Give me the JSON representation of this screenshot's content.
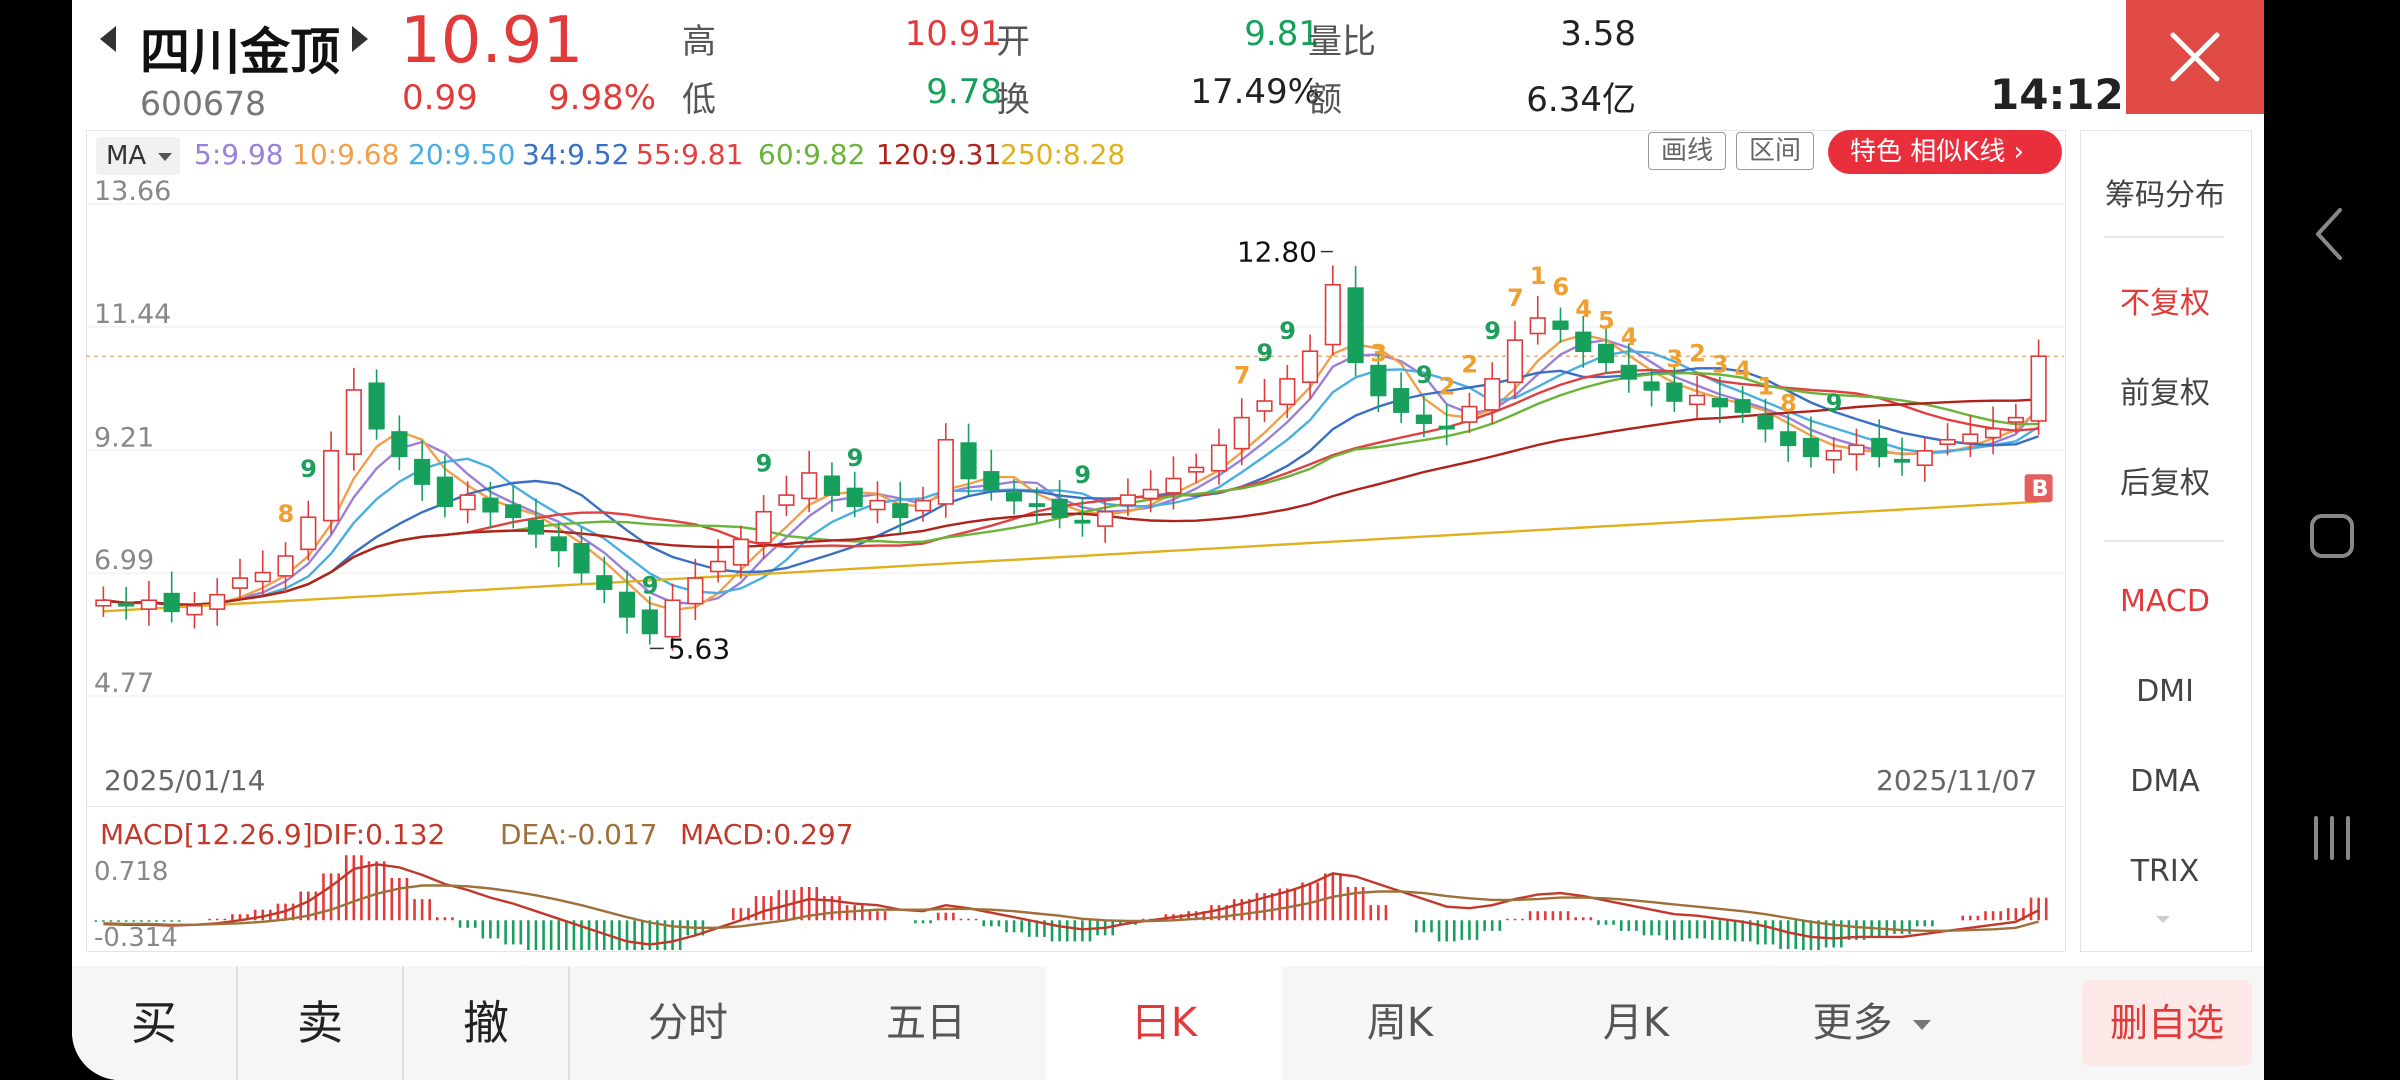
{
  "stock": {
    "name": "四川金顶",
    "code": "600678",
    "price": "10.91",
    "change": "0.99",
    "change_pct": "9.98%"
  },
  "quote": {
    "high_label": "高",
    "high": "10.91",
    "low_label": "低",
    "low": "9.78",
    "open_label": "开",
    "open": "9.81",
    "turnover_label": "换",
    "turnover": "17.49%",
    "volratio_label": "量比",
    "volratio": "3.58",
    "amount_label": "额",
    "amount": "6.34亿"
  },
  "time": "14:12",
  "ma": {
    "selector": "MA",
    "items": [
      {
        "text": "5:9.98",
        "color": "#9b7fd8"
      },
      {
        "text": "10:9.68",
        "color": "#f0a04b"
      },
      {
        "text": "20:9.50",
        "color": "#4aaee0"
      },
      {
        "text": "34:9.52",
        "color": "#3b6fc4"
      },
      {
        "text": "55:9.81",
        "color": "#e04040"
      },
      {
        "text": "60:9.82",
        "color": "#6ab43a"
      },
      {
        "text": "120:9.31",
        "color": "#b0221c"
      },
      {
        "text": "250:8.28",
        "color": "#e0b020"
      }
    ]
  },
  "toolbar": {
    "draw": "画线",
    "range": "区间",
    "feature": "特色  相似K线 ›"
  },
  "chart_data": {
    "type": "candlestick",
    "y_ticks": [
      "13.66",
      "11.44",
      "9.21",
      "6.99",
      "4.77"
    ],
    "ylim": [
      4.77,
      13.66
    ],
    "x_labels": [
      "2025/01/14",
      "2025/11/07"
    ],
    "high_marker": "12.80",
    "low_marker": "5.63",
    "last_close": 10.91,
    "trade_marker": "B",
    "sequence_counts": [
      "9",
      "8",
      "9",
      "9",
      "9",
      "9",
      "9",
      "9",
      "9",
      "9",
      "7",
      "7",
      "2",
      "1",
      "4",
      "3",
      "2",
      "6",
      "5",
      "4",
      "3",
      "4",
      "3",
      "2",
      "1",
      "8",
      "9"
    ],
    "closes": [
      6.5,
      6.4,
      6.5,
      6.3,
      6.4,
      6.6,
      6.9,
      7.0,
      7.3,
      8.0,
      9.2,
      10.3,
      9.6,
      9.1,
      8.6,
      8.2,
      8.4,
      8.1,
      8.0,
      7.7,
      7.4,
      7.0,
      6.7,
      6.2,
      5.9,
      6.5,
      6.9,
      7.2,
      7.6,
      8.1,
      8.4,
      8.8,
      8.4,
      8.2,
      8.3,
      8.0,
      8.3,
      9.4,
      8.7,
      8.5,
      8.3,
      8.2,
      8.0,
      7.9,
      8.1,
      8.4,
      8.5,
      8.7,
      8.9,
      9.3,
      9.8,
      10.1,
      10.5,
      11.0,
      12.2,
      10.8,
      10.2,
      9.9,
      9.7,
      9.6,
      10.0,
      10.5,
      11.2,
      11.6,
      11.4,
      11.0,
      10.8,
      10.5,
      10.3,
      10.1,
      10.2,
      10.0,
      9.9,
      9.6,
      9.3,
      9.1,
      9.2,
      9.3,
      9.1,
      9.0,
      9.2,
      9.4,
      9.5,
      9.6,
      9.8,
      10.91
    ],
    "ma_values": {
      "ma5": [
        6.5,
        6.45,
        6.45,
        6.42,
        6.42,
        6.44,
        6.54,
        6.64,
        6.84,
        7.16,
        7.68,
        8.36,
        8.88,
        9.24,
        9.36,
        9.16,
        8.78,
        8.46,
        8.26,
        8.08,
        7.92,
        7.64,
        7.36,
        7.0,
        6.64,
        6.46,
        6.44,
        6.54,
        6.82,
        7.26,
        7.64,
        8.02,
        8.3,
        8.36,
        8.42,
        8.34,
        8.24,
        8.44,
        8.54,
        8.58,
        8.64,
        8.62,
        8.34,
        8.18,
        8.1,
        8.12,
        8.18,
        8.32,
        8.52,
        8.76,
        9.04,
        9.36,
        9.72,
        10.14,
        10.72,
        10.92,
        10.94,
        10.82,
        10.56,
        10.04,
        9.88,
        9.94,
        10.2,
        10.58,
        10.94,
        11.14,
        11.2,
        11.06,
        10.8,
        10.54,
        10.38,
        10.22,
        10.1,
        9.96,
        9.8,
        9.58,
        9.42,
        9.3,
        9.2,
        9.14,
        9.16,
        9.2,
        9.24,
        9.34,
        9.5,
        9.98
      ]
    },
    "macd": {
      "title": "MACD[12.26.9]",
      "dif": "DIF:0.132",
      "dea": "DEA:-0.017",
      "macd": "MACD:0.297",
      "y_ticks": [
        "0.718",
        "-0.314"
      ],
      "dif_values": [
        -0.05,
        -0.06,
        -0.06,
        -0.07,
        -0.06,
        -0.04,
        0.0,
        0.05,
        0.12,
        0.25,
        0.45,
        0.68,
        0.74,
        0.7,
        0.6,
        0.48,
        0.4,
        0.3,
        0.22,
        0.12,
        0.02,
        -0.08,
        -0.18,
        -0.28,
        -0.32,
        -0.28,
        -0.2,
        -0.1,
        0.0,
        0.12,
        0.2,
        0.28,
        0.26,
        0.22,
        0.2,
        0.14,
        0.12,
        0.2,
        0.16,
        0.1,
        0.04,
        -0.02,
        -0.08,
        -0.12,
        -0.1,
        -0.04,
        0.0,
        0.04,
        0.08,
        0.14,
        0.22,
        0.3,
        0.38,
        0.48,
        0.62,
        0.58,
        0.48,
        0.38,
        0.28,
        0.18,
        0.16,
        0.2,
        0.28,
        0.34,
        0.36,
        0.32,
        0.26,
        0.2,
        0.14,
        0.08,
        0.06,
        0.02,
        -0.02,
        -0.08,
        -0.16,
        -0.22,
        -0.24,
        -0.22,
        -0.22,
        -0.22,
        -0.18,
        -0.14,
        -0.1,
        -0.06,
        -0.02,
        0.132
      ],
      "dea_values": [
        -0.04,
        -0.05,
        -0.05,
        -0.06,
        -0.06,
        -0.05,
        -0.04,
        -0.02,
        0.01,
        0.06,
        0.14,
        0.25,
        0.35,
        0.42,
        0.46,
        0.46,
        0.45,
        0.42,
        0.38,
        0.33,
        0.27,
        0.2,
        0.12,
        0.04,
        -0.03,
        -0.08,
        -0.1,
        -0.1,
        -0.08,
        -0.04,
        0.0,
        0.06,
        0.1,
        0.12,
        0.14,
        0.14,
        0.14,
        0.15,
        0.15,
        0.14,
        0.12,
        0.09,
        0.06,
        0.02,
        0.0,
        -0.01,
        -0.01,
        0.0,
        0.02,
        0.04,
        0.08,
        0.12,
        0.17,
        0.23,
        0.31,
        0.36,
        0.38,
        0.38,
        0.36,
        0.32,
        0.29,
        0.27,
        0.27,
        0.28,
        0.3,
        0.3,
        0.29,
        0.27,
        0.24,
        0.21,
        0.18,
        0.15,
        0.12,
        0.08,
        0.03,
        -0.02,
        -0.06,
        -0.09,
        -0.11,
        -0.13,
        -0.14,
        -0.14,
        -0.13,
        -0.12,
        -0.1,
        -0.017
      ]
    }
  },
  "side_panel": {
    "chips": "筹码分布",
    "no_adjust": "不复权",
    "pre_adjust": "前复权",
    "post_adjust": "后复权",
    "macd": "MACD",
    "dmi": "DMI",
    "dma": "DMA",
    "trix": "TRIX"
  },
  "bottom_tabs": {
    "buy": "买",
    "sell": "卖",
    "cancel": "撤",
    "intraday": "分时",
    "five_day": "五日",
    "daily": "日K",
    "weekly": "周K",
    "monthly": "月K",
    "more": "更多",
    "remove_watch": "删自选"
  },
  "colors": {
    "up": "#e03a3a",
    "down": "#17a05c",
    "accent": "#ea2f3c"
  }
}
